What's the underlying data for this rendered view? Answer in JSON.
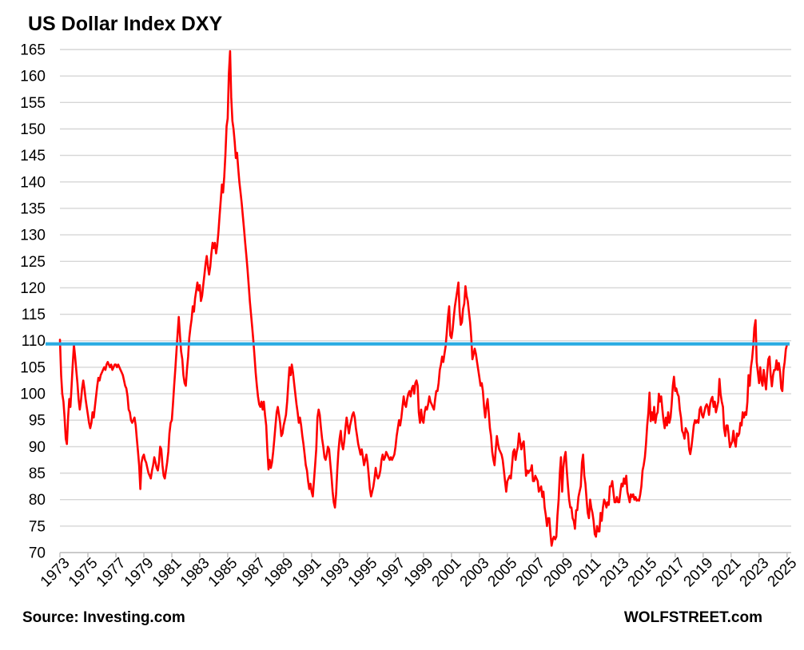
{
  "title": "US Dollar Index DXY",
  "footer": {
    "source": "Source: Investing.com",
    "brand": "WOLFSTREET.com"
  },
  "chart_data": {
    "type": "line",
    "title": "US Dollar Index DXY",
    "xlabel": "",
    "ylabel": "",
    "xlim": [
      1973,
      2025.3
    ],
    "ylim": [
      70,
      165
    ],
    "grid": "horizontal",
    "legend": "none",
    "y_ticks": [
      70,
      75,
      80,
      85,
      90,
      95,
      100,
      105,
      110,
      115,
      120,
      125,
      130,
      135,
      140,
      145,
      150,
      155,
      160,
      165
    ],
    "x_ticks": [
      1973,
      1975,
      1977,
      1979,
      1981,
      1983,
      1985,
      1987,
      1989,
      1991,
      1993,
      1995,
      1997,
      1999,
      2001,
      2003,
      2005,
      2007,
      2009,
      2011,
      2013,
      2015,
      2017,
      2019,
      2021,
      2023,
      2025
    ],
    "series_start_year": 1973,
    "points_per_year": 12,
    "reference_line": {
      "value": 109.4,
      "color": "#29ABE2"
    },
    "colors": {
      "line": "#FF0000",
      "grid": "#D6D6D6",
      "axis": "#BFBFBF",
      "text": "#000000",
      "background": "#FFFFFF"
    },
    "series": [
      {
        "name": "US Dollar Index DXY (monthly, estimated from chart)",
        "color": "#FF0000",
        "values": [
          110.2,
          103.5,
          100.0,
          98.5,
          95.5,
          91.5,
          90.5,
          95.5,
          99.0,
          97.5,
          101.5,
          105.5,
          109.2,
          107.0,
          104.5,
          102.0,
          99.0,
          97.0,
          98.5,
          101.0,
          102.5,
          101.0,
          99.0,
          97.5,
          96.0,
          94.5,
          93.5,
          94.5,
          96.5,
          95.5,
          97.5,
          99.5,
          101.5,
          103.0,
          102.5,
          103.5,
          104.0,
          104.5,
          105.0,
          104.5,
          105.5,
          106.0,
          105.5,
          105.0,
          105.5,
          104.5,
          105.0,
          105.5,
          105.5,
          105.0,
          105.5,
          105.0,
          104.5,
          104.0,
          103.5,
          102.5,
          101.5,
          101.0,
          99.5,
          97.0,
          96.5,
          95.0,
          94.5,
          95.0,
          95.5,
          94.0,
          91.5,
          89.0,
          86.5,
          82.0,
          87.0,
          88.0,
          88.5,
          87.5,
          87.0,
          86.0,
          85.0,
          84.5,
          84.0,
          85.5,
          86.5,
          88.0,
          87.0,
          86.0,
          85.5,
          87.0,
          90.0,
          89.5,
          86.5,
          84.5,
          84.0,
          85.5,
          87.0,
          89.0,
          92.5,
          94.5,
          95.0,
          98.0,
          101.5,
          104.5,
          108.0,
          111.5,
          114.5,
          111.0,
          108.0,
          106.5,
          103.5,
          102.0,
          101.5,
          104.5,
          107.0,
          110.5,
          112.5,
          114.0,
          116.5,
          115.5,
          118.0,
          119.5,
          121.0,
          119.5,
          120.5,
          117.5,
          118.5,
          120.5,
          122.5,
          124.5,
          126.0,
          124.0,
          122.5,
          124.0,
          126.5,
          128.5,
          127.5,
          128.5,
          126.5,
          128.0,
          130.5,
          133.5,
          136.5,
          139.5,
          138.0,
          141.0,
          145.0,
          150.5,
          152.0,
          160.5,
          164.7,
          156.0,
          151.5,
          150.0,
          147.5,
          144.5,
          145.5,
          142.5,
          140.0,
          138.0,
          136.0,
          133.5,
          131.0,
          128.5,
          126.0,
          123.5,
          120.5,
          117.5,
          115.0,
          112.5,
          110.0,
          107.0,
          104.0,
          101.5,
          99.5,
          98.0,
          97.5,
          98.5,
          97.0,
          98.5,
          96.0,
          94.0,
          89.5,
          85.7,
          87.5,
          86.0,
          87.0,
          89.0,
          91.5,
          94.0,
          96.5,
          97.5,
          96.0,
          94.5,
          92.0,
          92.5,
          94.0,
          95.0,
          96.0,
          98.5,
          102.0,
          105.0,
          103.5,
          105.5,
          104.0,
          102.0,
          100.0,
          98.0,
          96.5,
          94.5,
          95.5,
          94.0,
          92.0,
          90.5,
          88.5,
          86.5,
          85.5,
          83.5,
          82.0,
          83.0,
          81.5,
          80.6,
          83.5,
          86.5,
          89.5,
          95.5,
          97.0,
          96.0,
          93.5,
          91.5,
          90.0,
          88.0,
          87.5,
          88.5,
          90.0,
          89.5,
          87.0,
          84.5,
          81.5,
          79.5,
          78.5,
          81.0,
          85.5,
          89.0,
          91.5,
          93.0,
          90.5,
          89.5,
          91.0,
          93.5,
          95.5,
          94.0,
          92.5,
          94.0,
          95.0,
          96.0,
          96.5,
          95.5,
          93.5,
          92.0,
          90.5,
          89.5,
          88.5,
          89.5,
          88.0,
          86.5,
          87.5,
          88.5,
          87.0,
          84.5,
          82.0,
          80.6,
          81.5,
          82.5,
          84.0,
          86.0,
          84.5,
          84.0,
          84.5,
          85.5,
          87.5,
          88.5,
          87.5,
          88.0,
          89.0,
          88.5,
          88.0,
          87.5,
          88.0,
          87.5,
          88.0,
          88.5,
          90.0,
          92.0,
          93.5,
          95.0,
          94.0,
          95.5,
          97.5,
          99.5,
          98.0,
          97.5,
          99.0,
          100.0,
          100.5,
          99.5,
          101.0,
          101.5,
          100.0,
          102.0,
          102.5,
          101.5,
          96.5,
          94.5,
          97.0,
          95.0,
          94.5,
          96.5,
          97.5,
          97.0,
          98.0,
          99.5,
          98.5,
          98.0,
          97.5,
          97.0,
          99.0,
          100.5,
          100.5,
          102.0,
          104.5,
          105.5,
          107.0,
          106.0,
          107.5,
          109.0,
          111.5,
          114.5,
          116.5,
          111.0,
          110.5,
          112.0,
          114.5,
          116.5,
          118.0,
          119.5,
          121.0,
          115.5,
          113.0,
          113.5,
          116.0,
          117.0,
          120.3,
          118.5,
          117.5,
          115.5,
          113.5,
          110.5,
          106.5,
          107.5,
          108.5,
          107.5,
          106.0,
          104.5,
          103.0,
          101.5,
          102.0,
          100.5,
          97.5,
          95.5,
          97.5,
          99.0,
          96.5,
          93.5,
          92.0,
          89.0,
          87.5,
          86.5,
          89.5,
          92.0,
          90.5,
          89.5,
          89.0,
          88.5,
          87.5,
          85.5,
          83.5,
          81.5,
          83.5,
          84.0,
          84.5,
          84.0,
          86.5,
          89.0,
          89.5,
          87.5,
          89.0,
          90.0,
          92.5,
          91.0,
          89.5,
          90.5,
          91.0,
          88.0,
          84.5,
          85.5,
          85.0,
          85.5,
          85.5,
          86.5,
          83.5,
          83.5,
          84.5,
          84.0,
          83.5,
          81.5,
          82.0,
          82.5,
          80.5,
          81.5,
          78.5,
          77.0,
          75.0,
          76.5,
          76.5,
          73.5,
          71.3,
          72.5,
          73.0,
          72.5,
          73.0,
          77.0,
          80.0,
          85.0,
          88.0,
          81.5,
          86.0,
          88.0,
          89.0,
          85.5,
          82.5,
          80.0,
          78.5,
          78.5,
          76.5,
          76.0,
          74.5,
          78.0,
          78.0,
          80.5,
          81.5,
          82.5,
          87.0,
          88.5,
          84.5,
          83.0,
          80.0,
          77.5,
          76.5,
          80.0,
          78.5,
          77.5,
          76.0,
          73.5,
          73.0,
          75.0,
          74.0,
          74.0,
          77.5,
          76.0,
          78.5,
          80.0,
          79.5,
          78.5,
          79.5,
          79.0,
          82.5,
          82.5,
          83.5,
          81.5,
          79.5,
          79.5,
          80.5,
          79.5,
          79.5,
          81.5,
          83.0,
          82.5,
          84.0,
          83.0,
          84.5,
          81.5,
          80.5,
          79.5,
          81.0,
          80.5,
          81.0,
          80.0,
          80.5,
          79.8,
          80.0,
          79.8,
          81.0,
          82.5,
          85.5,
          86.5,
          88.0,
          90.5,
          94.0,
          96.5,
          100.2,
          94.8,
          96.5,
          95.0,
          97.5,
          94.5,
          96.0,
          96.5,
          100.0,
          98.5,
          99.5,
          97.0,
          95.0,
          93.5,
          95.5,
          94.0,
          96.5,
          94.5,
          95.5,
          98.0,
          101.5,
          103.2,
          100.5,
          101.0,
          100.0,
          99.5,
          97.0,
          95.5,
          93.0,
          92.5,
          91.5,
          93.5,
          93.0,
          92.5,
          89.5,
          88.6,
          90.0,
          92.0,
          94.0,
          95.0,
          94.5,
          95.0,
          94.5,
          97.0,
          97.5,
          96.0,
          95.5,
          96.5,
          97.5,
          98.0,
          97.5,
          96.0,
          98.0,
          99.0,
          99.4,
          97.5,
          98.5,
          96.5,
          97.5,
          98.5,
          102.8,
          100.0,
          98.5,
          97.5,
          93.5,
          92.0,
          94.0,
          94.0,
          92.0,
          89.9,
          90.5,
          91.0,
          93.0,
          91.0,
          90.0,
          92.5,
          92.0,
          92.5,
          94.5,
          94.0,
          96.5,
          95.5,
          96.5,
          96.0,
          98.5,
          103.5,
          101.5,
          105.0,
          106.5,
          109.0,
          112.5,
          113.9,
          106.0,
          104.0,
          102.0,
          105.0,
          102.5,
          101.5,
          104.5,
          102.5,
          100.8,
          104.0,
          106.5,
          107.0,
          103.5,
          101.4,
          103.5,
          104.5,
          104.5,
          106.3,
          104.5,
          105.8,
          104.2,
          101.0,
          100.5,
          104.5,
          106.0,
          108.4,
          109.3
        ]
      }
    ]
  }
}
